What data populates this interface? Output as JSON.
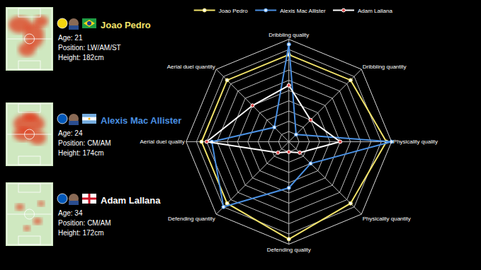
{
  "chart_data": {
    "type": "radar",
    "categories": [
      "Dribbling quality",
      "Dribbling quantity",
      "Physicality quality",
      "Physicality quantity",
      "Defending quality",
      "Defending quantity",
      "Aerial duel quality",
      "Aerial duel quantity"
    ],
    "series": [
      {
        "name": "Joao Pedro",
        "color": "#f2e36a",
        "values": [
          8.5,
          8.5,
          9.5,
          8.5,
          9.5,
          8.5,
          8.5,
          8.5
        ]
      },
      {
        "name": "Alexis Mac Allister",
        "color": "#4a90e2",
        "values": [
          9.5,
          1,
          10,
          3,
          4.5,
          9,
          7.5,
          2
        ]
      },
      {
        "name": "Adam Lallana",
        "color": "#ffffff",
        "values": [
          5.5,
          3,
          5,
          1.5,
          1,
          1.5,
          8,
          5
        ]
      }
    ],
    "rlim": [
      0,
      10
    ],
    "rticks": [
      0,
      1,
      2,
      3,
      4,
      5,
      6,
      7,
      8,
      9,
      10
    ],
    "grid": true,
    "legend": "top",
    "tick_labels": "x",
    "marker": "circle"
  },
  "players": [
    {
      "name": "Joao Pedro",
      "color": "#f2e36a",
      "details": [
        "Age: 21",
        "Position: LW/AM/ST",
        "Height: 182cm"
      ]
    },
    {
      "name": "Alexis Mac Allister",
      "color": "#4a90e2",
      "details": [
        "Age: 24",
        "Position: CM/AM",
        "Height: 174cm"
      ]
    },
    {
      "name": "Adam Lallana",
      "color": "#ffffff",
      "details": [
        "Age: 34",
        "Position: CM/AM",
        "Height: 172cm"
      ]
    }
  ]
}
